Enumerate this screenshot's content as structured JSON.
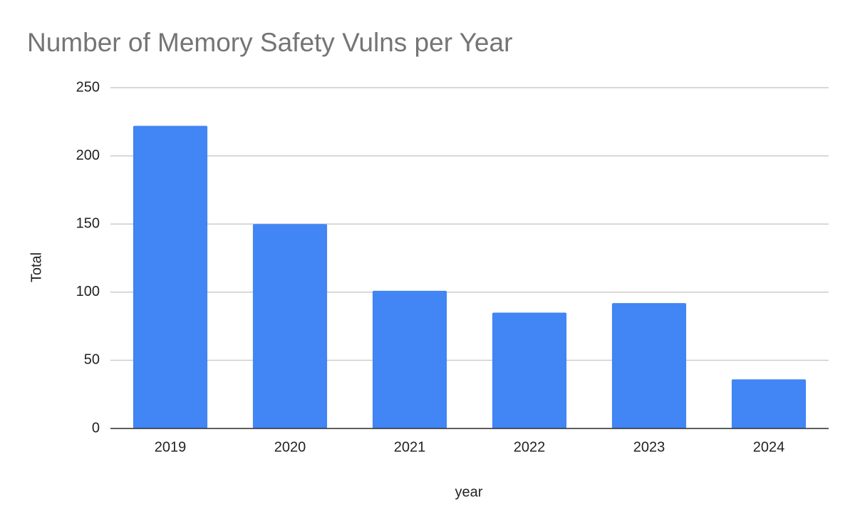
{
  "chart_data": {
    "type": "bar",
    "title": "Number of Memory Safety Vulns per Year",
    "x_label": "year",
    "y_label": "Total",
    "categories": [
      "2019",
      "2020",
      "2021",
      "2022",
      "2023",
      "2024"
    ],
    "values": [
      222,
      150,
      101,
      85,
      92,
      36
    ],
    "color": "#4285f4",
    "ylim": [
      0,
      250
    ],
    "yticks": [
      0,
      50,
      100,
      150,
      200,
      250
    ],
    "grid": true
  }
}
